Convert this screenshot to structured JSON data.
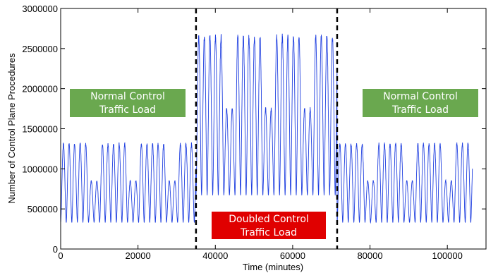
{
  "chart_data": {
    "type": "line",
    "xlabel": "Time (minutes)",
    "ylabel": "Number of Control Plane Procedures",
    "xlim": [
      0,
      110000
    ],
    "ylim": [
      0,
      3000000
    ],
    "x_ticks": [
      0,
      20000,
      40000,
      60000,
      80000,
      100000
    ],
    "x_tick_labels": [
      "0",
      "20000",
      "40000",
      "60000",
      "80000",
      "100000"
    ],
    "y_ticks": [
      0,
      500000,
      1000000,
      1500000,
      2000000,
      2500000,
      3000000
    ],
    "y_tick_labels": [
      "0",
      "500000",
      "1000000",
      "1500000",
      "2000000",
      "2500000",
      "3000000"
    ],
    "grid": false,
    "line_color": "#1f3fe0",
    "vlines": [
      35000,
      71500
    ],
    "segments": [
      {
        "x_start": 0,
        "x_end": 35000,
        "period_minutes": 1440,
        "troughs": 330000,
        "weekday_peaks": 1310000,
        "weekend_peaks": 850000
      },
      {
        "x_start": 35000,
        "x_end": 71500,
        "period_minutes": 1440,
        "troughs": 670000,
        "weekday_peaks": 2650000,
        "weekend_peaks": 1750000
      },
      {
        "x_start": 71500,
        "x_end": 106500,
        "period_minutes": 1440,
        "troughs": 330000,
        "weekday_peaks": 1310000,
        "weekend_peaks": 850000
      }
    ],
    "annotations": [
      {
        "lines": [
          "Normal Control",
          "Traffic Load"
        ],
        "color": "#6aa84f"
      },
      {
        "lines": [
          "Doubled Control",
          "Traffic Load"
        ],
        "color": "#e00000"
      },
      {
        "lines": [
          "Normal Control",
          "Traffic Load"
        ],
        "color": "#6aa84f"
      }
    ]
  }
}
